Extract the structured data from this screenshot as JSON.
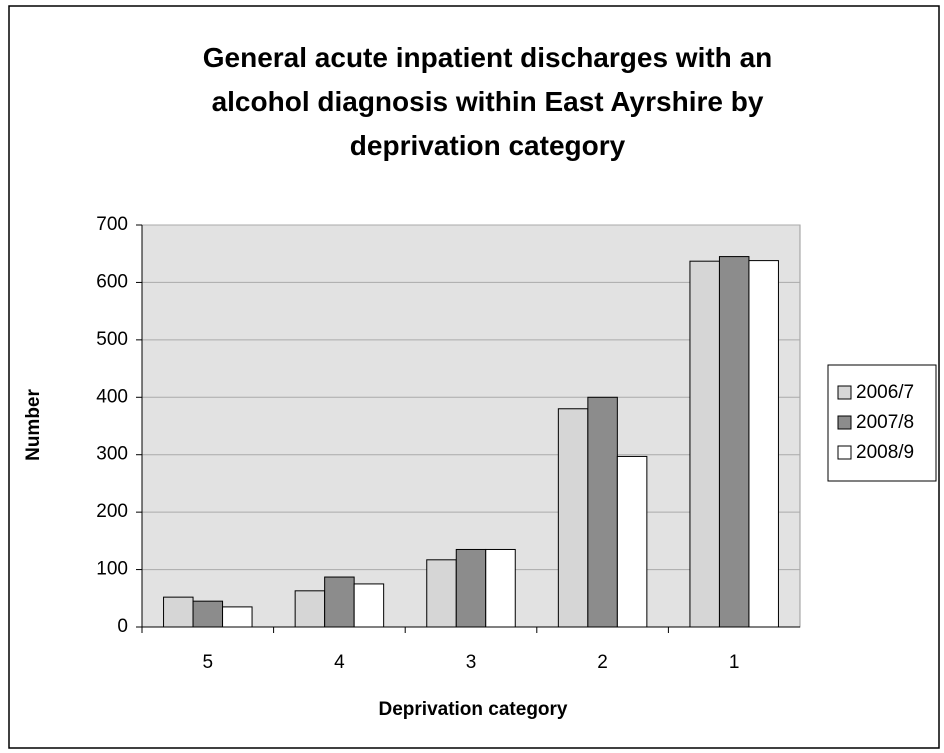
{
  "chart_data": {
    "type": "bar",
    "title": "General acute inpatient discharges with an alcohol diagnosis within East Ayrshire by deprivation category",
    "x_label": "Deprivation category",
    "y_label": "Number",
    "categories": [
      "5",
      "4",
      "3",
      "2",
      "1"
    ],
    "series": [
      {
        "name": "2006/7",
        "color": "#d6d6d6",
        "values": [
          52,
          63,
          117,
          380,
          637
        ]
      },
      {
        "name": "2007/8",
        "color": "#8c8c8c",
        "values": [
          45,
          87,
          135,
          400,
          645
        ]
      },
      {
        "name": "2008/9",
        "color": "#ffffff",
        "values": [
          35,
          75,
          135,
          297,
          638
        ]
      }
    ],
    "ylim": [
      0,
      700
    ],
    "yticks": [
      0,
      100,
      200,
      300,
      400,
      500,
      600,
      700
    ],
    "grid": true,
    "legend": "right"
  }
}
